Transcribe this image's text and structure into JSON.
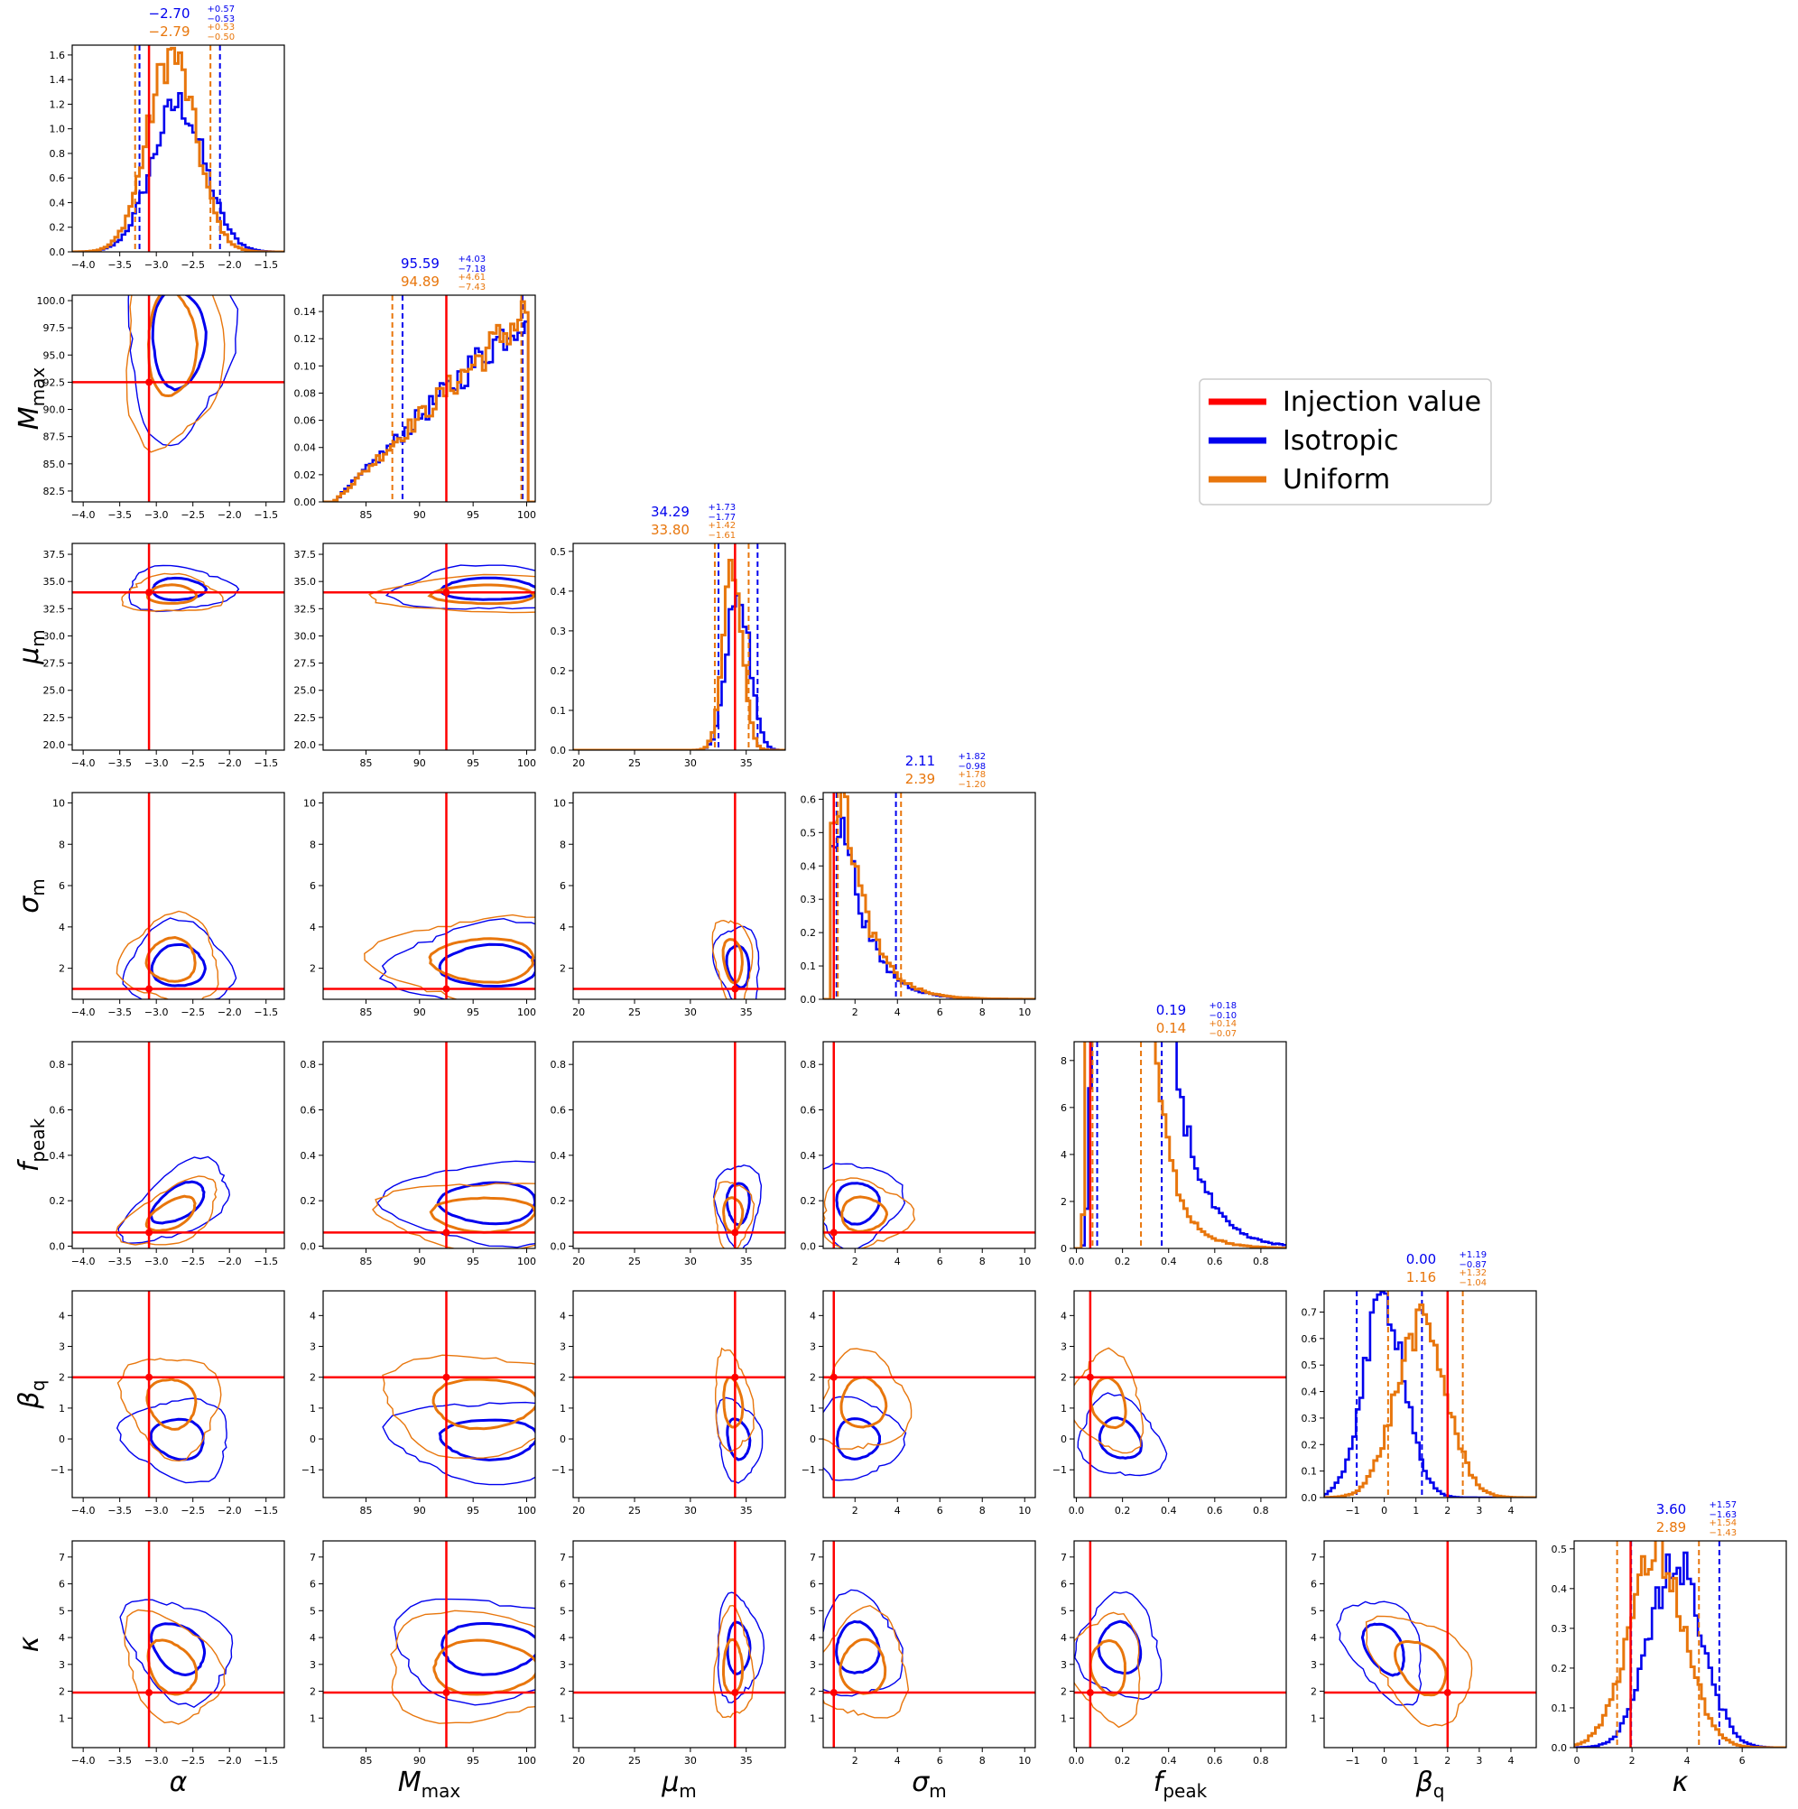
{
  "chart_data": {
    "type": "corner",
    "params": [
      {
        "key": "alpha",
        "label": "α",
        "range": [
          -4.15,
          -1.25
        ],
        "ticks": [
          "-4.0",
          "-3.5",
          "-3.0",
          "-2.5",
          "-2.0",
          "-1.5"
        ],
        "tickvals": [
          -4.0,
          -3.5,
          -3.0,
          -2.5,
          -2.0,
          -1.5
        ],
        "injection": -3.1
      },
      {
        "key": "Mmax",
        "label": "M",
        "sub": "max",
        "range": [
          81.0,
          100.8
        ],
        "ticks": [
          "85",
          "90",
          "95",
          "100"
        ],
        "tickvals": [
          85,
          90,
          95,
          100
        ],
        "injection": 92.5
      },
      {
        "key": "mu_m",
        "label": "μ",
        "sub": "m",
        "range": [
          19.5,
          38.5
        ],
        "ticks": [
          "20",
          "25",
          "30",
          "35"
        ],
        "tickvals": [
          20,
          25,
          30,
          35
        ],
        "injection": 34.0
      },
      {
        "key": "sigma_m",
        "label": "σ",
        "sub": "m",
        "range": [
          0.5,
          10.5
        ],
        "ticks": [
          "2",
          "4",
          "6",
          "8",
          "10"
        ],
        "tickvals": [
          2,
          4,
          6,
          8,
          10
        ],
        "injection": 1.0
      },
      {
        "key": "f_peak",
        "label": "f",
        "sub": "peak",
        "range": [
          -0.01,
          0.91
        ],
        "ticks": [
          "0.0",
          "0.2",
          "0.4",
          "0.6",
          "0.8"
        ],
        "tickvals": [
          0,
          0.2,
          0.4,
          0.6,
          0.8
        ],
        "injection": 0.06
      },
      {
        "key": "beta_q",
        "label": "β",
        "sub": "q",
        "range": [
          -1.9,
          4.8
        ],
        "ticks": [
          "-1",
          "0",
          "1",
          "2",
          "3",
          "4"
        ],
        "tickvals": [
          -1,
          0,
          1,
          2,
          3,
          4
        ],
        "injection": 2.0
      },
      {
        "key": "kappa",
        "label": "κ",
        "range": [
          -0.1,
          7.6
        ],
        "ticks": [
          "0",
          "2",
          "4",
          "6"
        ],
        "tickvals": [
          0,
          2,
          4,
          6
        ],
        "injection": 1.95
      }
    ],
    "marginal_ylim": [
      [
        0,
        1.68
      ],
      [
        0,
        0.152
      ],
      [
        0,
        0.52
      ],
      [
        0,
        0.62
      ],
      [
        0,
        0.88
      ],
      [
        0,
        0.78
      ],
      [
        0,
        0.52
      ]
    ],
    "marginal_yticks": [
      [
        "0.0",
        "0.2",
        "0.4",
        "0.6",
        "0.8",
        "1.0",
        "1.2",
        "1.4",
        "1.6"
      ],
      [
        "0.00",
        "0.02",
        "0.04",
        "0.06",
        "0.08",
        "0.10",
        "0.12",
        "0.14"
      ],
      [
        "0.0",
        "0.1",
        "0.2",
        "0.3",
        "0.4",
        "0.5"
      ],
      [
        "0.0",
        "0.1",
        "0.2",
        "0.3",
        "0.4",
        "0.5",
        "0.6"
      ],
      [
        "0",
        "2",
        "4",
        "6",
        "8"
      ],
      [
        "0.0",
        "0.1",
        "0.2",
        "0.3",
        "0.4",
        "0.5",
        "0.6",
        "0.7"
      ],
      [
        "0.0",
        "0.1",
        "0.2",
        "0.3",
        "0.4",
        "0.5"
      ]
    ],
    "marginal_ytickvals": [
      [
        0,
        0.2,
        0.4,
        0.6,
        0.8,
        1.0,
        1.2,
        1.4,
        1.6
      ],
      [
        0,
        0.02,
        0.04,
        0.06,
        0.08,
        0.1,
        0.12,
        0.14
      ],
      [
        0,
        0.1,
        0.2,
        0.3,
        0.4,
        0.5
      ],
      [
        0,
        0.1,
        0.2,
        0.3,
        0.4,
        0.5,
        0.6
      ],
      [
        0,
        0.2,
        0.4,
        0.6,
        0.8
      ],
      [
        0,
        0.1,
        0.2,
        0.3,
        0.4,
        0.5,
        0.6,
        0.7
      ],
      [
        0,
        0.1,
        0.2,
        0.3,
        0.4,
        0.5
      ]
    ],
    "row_ylim": [
      null,
      [
        81.5,
        100.5
      ],
      [
        19.5,
        38.5
      ],
      [
        0.5,
        10.5
      ],
      [
        -0.01,
        0.9
      ],
      [
        -1.9,
        4.8
      ],
      [
        -0.1,
        7.6
      ]
    ],
    "row_yticks": [
      null,
      [
        "82.5",
        "85.0",
        "87.5",
        "90.0",
        "92.5",
        "95.0",
        "97.5",
        "100.0"
      ],
      [
        "20.0",
        "22.5",
        "25.0",
        "27.5",
        "30.0",
        "32.5",
        "35.0",
        "37.5"
      ],
      [
        "2",
        "4",
        "6",
        "8",
        "10"
      ],
      [
        "0.0",
        "0.2",
        "0.4",
        "0.6",
        "0.8"
      ],
      [
        "-1",
        "0",
        "1",
        "2",
        "3",
        "4"
      ],
      [
        "1",
        "2",
        "3",
        "4",
        "5",
        "6",
        "7"
      ]
    ],
    "row_ytickvals": [
      null,
      [
        82.5,
        85,
        87.5,
        90,
        92.5,
        95,
        97.5,
        100
      ],
      [
        20,
        22.5,
        25,
        27.5,
        30,
        32.5,
        35,
        37.5
      ],
      [
        2,
        4,
        6,
        8,
        10
      ],
      [
        0,
        0.2,
        0.4,
        0.6,
        0.8
      ],
      [
        -1,
        0,
        1,
        2,
        3,
        4
      ],
      [
        1,
        2,
        3,
        4,
        5,
        6,
        7
      ]
    ],
    "series": [
      {
        "name": "Isotropic",
        "color": "#0000ee",
        "median": [
          -2.7,
          96.5,
          34.29,
          2.11,
          0.19,
          0.0,
          3.6
        ],
        "sd": [
          0.36,
          4.5,
          1.0,
          1.0,
          0.09,
          0.65,
          0.95
        ],
        "rho": [
          [
            1,
            0.0,
            0.0,
            0.0,
            0.55,
            -0.1,
            -0.3
          ],
          [
            0.0,
            1,
            0.0,
            0.0,
            0.0,
            0.0,
            0.0
          ],
          [
            0.0,
            0.0,
            1,
            -0.2,
            0.0,
            -0.2,
            0.0
          ],
          [
            0.0,
            0.0,
            -0.2,
            1,
            0.0,
            0.0,
            0.0
          ],
          [
            0.55,
            0.0,
            0.0,
            0.0,
            1,
            -0.2,
            -0.1
          ],
          [
            -0.1,
            0.0,
            -0.2,
            0.0,
            -0.2,
            1,
            -0.4
          ],
          [
            -0.3,
            0.0,
            0.0,
            0.0,
            -0.1,
            -0.4,
            1
          ]
        ],
        "quantile_lo": [
          -3.23,
          88.41,
          32.52,
          1.13,
          0.09,
          -0.87,
          1.97
        ],
        "quantile_hi": [
          -2.13,
          99.62,
          36.02,
          3.93,
          0.37,
          1.19,
          5.17
        ],
        "title": "-2.70|+0.57|-0.53;95.59|+4.03|-7.18;34.29|+1.73|-1.77;2.11|+1.82|-0.98;0.19|+0.18|-0.10;0.00|+1.19|-0.87;3.60|+1.57|-1.63",
        "marginal_peak": [
          1.2,
          0.14,
          0.41,
          0.5,
          5.5,
          0.75,
          0.47
        ]
      },
      {
        "name": "Uniform",
        "color": "#e8760c",
        "median": [
          -2.79,
          96.0,
          33.8,
          2.39,
          0.14,
          1.16,
          2.89
        ],
        "sd": [
          0.33,
          4.8,
          0.85,
          1.05,
          0.075,
          0.8,
          1.0
        ],
        "rho": [
          [
            1,
            0.0,
            0.0,
            0.0,
            0.55,
            -0.1,
            -0.3
          ],
          [
            0.0,
            1,
            0.0,
            0.0,
            0.0,
            0.0,
            0.0
          ],
          [
            0.0,
            0.0,
            1,
            -0.2,
            0.0,
            -0.2,
            0.0
          ],
          [
            0.0,
            0.0,
            -0.2,
            1,
            0.0,
            0.0,
            0.0
          ],
          [
            0.55,
            0.0,
            0.0,
            0.0,
            1,
            -0.2,
            -0.1
          ],
          [
            -0.1,
            0.0,
            -0.2,
            0.0,
            -0.2,
            1,
            -0.4
          ],
          [
            -0.3,
            0.0,
            0.0,
            0.0,
            -0.1,
            -0.4,
            1
          ]
        ],
        "quantile_lo": [
          -3.29,
          87.46,
          32.19,
          1.19,
          0.07,
          0.12,
          1.46
        ],
        "quantile_hi": [
          -2.26,
          99.5,
          35.22,
          4.17,
          0.28,
          2.48,
          4.43
        ],
        "title": "-2.79|+0.53|-0.50;94.89|+4.61|-7.43;33.80|+1.42|-1.61;2.39|+1.78|-1.20;0.14|+0.14|-0.07;1.16|+1.32|-1.04;2.89|+1.54|-1.43",
        "marginal_peak": [
          1.6,
          0.14,
          0.45,
          0.58,
          8.0,
          0.65,
          0.49
        ]
      }
    ],
    "injection_color": "#ff0000",
    "legend": {
      "placement": "upper-right",
      "entries": [
        {
          "label": "Injection value",
          "color": "#ff0000"
        },
        {
          "label": "Isotropic",
          "color": "#0000ee"
        },
        {
          "label": "Uniform",
          "color": "#e8760c"
        }
      ]
    }
  }
}
